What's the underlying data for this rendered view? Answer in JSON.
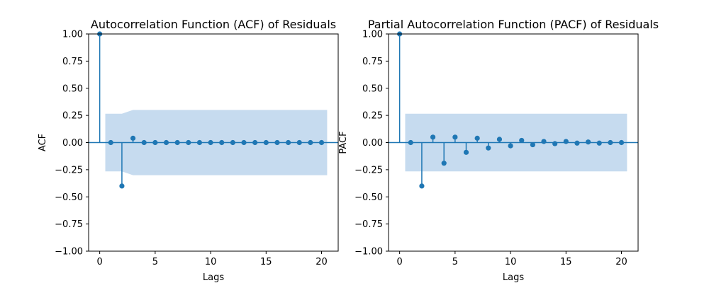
{
  "chart_data": [
    {
      "type": "stem",
      "title": "Autocorrelation Function (ACF) of Residuals",
      "xlabel": "Lags",
      "ylabel": "ACF",
      "xlim": [
        -1,
        21.5
      ],
      "ylim": [
        -1.0,
        1.0
      ],
      "xticks": [
        0,
        5,
        10,
        15,
        20
      ],
      "yticks": [
        -1.0,
        -0.75,
        -0.5,
        -0.25,
        0.0,
        0.25,
        0.5,
        0.75,
        1.0
      ],
      "ytick_labels": [
        "−1.00",
        "−0.75",
        "−0.50",
        "−0.25",
        "0.00",
        "0.25",
        "0.50",
        "0.75",
        "1.00"
      ],
      "color": "#1f77b4",
      "confint_color": "#c6dbef",
      "grid": false,
      "x": [
        0,
        1,
        2,
        3,
        4,
        5,
        6,
        7,
        8,
        9,
        10,
        11,
        12,
        13,
        14,
        15,
        16,
        17,
        18,
        19,
        20
      ],
      "values": [
        1.0,
        0.0,
        -0.4,
        0.04,
        0.0,
        0.0,
        0.0,
        0.0,
        0.0,
        0.0,
        0.0,
        0.0,
        0.0,
        0.0,
        0.0,
        0.0,
        0.0,
        0.0,
        0.0,
        0.0,
        0.0
      ],
      "confint": {
        "x": [
          0.5,
          1,
          2,
          3,
          4,
          5,
          6,
          7,
          8,
          9,
          10,
          11,
          12,
          13,
          14,
          15,
          16,
          17,
          18,
          19,
          20,
          20.5
        ],
        "upper": [
          0.265,
          0.265,
          0.265,
          0.3,
          0.3,
          0.3,
          0.3,
          0.3,
          0.3,
          0.3,
          0.3,
          0.3,
          0.3,
          0.3,
          0.3,
          0.3,
          0.3,
          0.3,
          0.3,
          0.3,
          0.3,
          0.3
        ]
      }
    },
    {
      "type": "stem",
      "title": "Partial Autocorrelation Function (PACF) of Residuals",
      "xlabel": "Lags",
      "ylabel": "PACF",
      "xlim": [
        -1,
        21.5
      ],
      "ylim": [
        -1.0,
        1.0
      ],
      "xticks": [
        0,
        5,
        10,
        15,
        20
      ],
      "yticks": [
        -1.0,
        -0.75,
        -0.5,
        -0.25,
        0.0,
        0.25,
        0.5,
        0.75,
        1.0
      ],
      "ytick_labels": [
        "−1.00",
        "−0.75",
        "−0.50",
        "−0.25",
        "0.00",
        "0.25",
        "0.50",
        "0.75",
        "1.00"
      ],
      "color": "#1f77b4",
      "confint_color": "#c6dbef",
      "grid": false,
      "x": [
        0,
        1,
        2,
        3,
        4,
        5,
        6,
        7,
        8,
        9,
        10,
        11,
        12,
        13,
        14,
        15,
        16,
        17,
        18,
        19,
        20
      ],
      "values": [
        1.0,
        0.0,
        -0.4,
        0.05,
        -0.19,
        0.05,
        -0.09,
        0.04,
        -0.05,
        0.03,
        -0.03,
        0.02,
        -0.02,
        0.01,
        -0.01,
        0.01,
        -0.005,
        0.005,
        -0.005,
        0.0,
        0.0
      ],
      "confint": {
        "x": [
          0.5,
          20.5
        ],
        "upper": [
          0.265,
          0.265
        ]
      }
    }
  ]
}
